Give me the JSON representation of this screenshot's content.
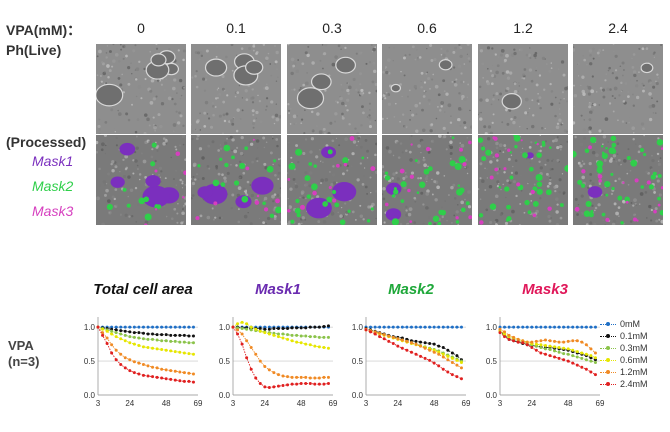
{
  "header": {
    "vpa_label": "VPA(mM)：",
    "ph_label": "Ph(Live)",
    "processed_label": "(Processed)",
    "concentrations": [
      "0",
      "0.1",
      "0.3",
      "0.6",
      "1.2",
      "2.4"
    ]
  },
  "masks": [
    {
      "name": "Mask1",
      "color": "#7b2fbe"
    },
    {
      "name": "Mask2",
      "color": "#2fcf4a"
    },
    {
      "name": "Mask3",
      "color": "#d63fbf"
    }
  ],
  "vpa_row_label": [
    "VPA",
    "(n=3)"
  ],
  "chart_data": [
    {
      "type": "line",
      "title": "Total cell area",
      "title_color": "#111111",
      "x_ticks": [
        "3",
        "24",
        "48",
        "69"
      ],
      "y_ticks": [
        "0.0",
        "0.5",
        "1.0"
      ],
      "xlim": [
        3,
        69
      ],
      "ylim": [
        0,
        1.15
      ],
      "x": [
        3,
        6,
        9,
        12,
        15,
        18,
        21,
        24,
        27,
        30,
        33,
        36,
        39,
        42,
        45,
        48,
        51,
        54,
        57,
        60,
        63,
        66
      ],
      "series": [
        {
          "name": "0mM",
          "color": "#1f6fc5",
          "values": [
            1.0,
            1.0,
            1.0,
            1.0,
            1.0,
            1.0,
            1.0,
            1.0,
            1.0,
            1.0,
            1.0,
            1.0,
            1.0,
            1.0,
            1.0,
            1.0,
            1.0,
            1.0,
            1.0,
            1.0,
            1.0,
            1.0
          ]
        },
        {
          "name": "0.1mM",
          "color": "#111111",
          "values": [
            1.0,
            0.99,
            0.98,
            0.97,
            0.96,
            0.95,
            0.94,
            0.93,
            0.92,
            0.92,
            0.91,
            0.9,
            0.9,
            0.89,
            0.89,
            0.89,
            0.88,
            0.88,
            0.88,
            0.88,
            0.87,
            0.87
          ]
        },
        {
          "name": "0.3mM",
          "color": "#8bc34a",
          "values": [
            1.0,
            0.98,
            0.96,
            0.94,
            0.92,
            0.9,
            0.88,
            0.86,
            0.85,
            0.84,
            0.83,
            0.82,
            0.82,
            0.81,
            0.8,
            0.8,
            0.79,
            0.79,
            0.78,
            0.78,
            0.77,
            0.77
          ]
        },
        {
          "name": "0.6mM",
          "color": "#e6e600",
          "values": [
            1.0,
            0.97,
            0.94,
            0.9,
            0.86,
            0.83,
            0.8,
            0.77,
            0.75,
            0.73,
            0.71,
            0.7,
            0.69,
            0.68,
            0.67,
            0.66,
            0.65,
            0.64,
            0.63,
            0.62,
            0.61,
            0.6
          ]
        },
        {
          "name": "1.2mM",
          "color": "#f08a24",
          "values": [
            1.0,
            0.92,
            0.84,
            0.74,
            0.66,
            0.6,
            0.55,
            0.52,
            0.49,
            0.47,
            0.45,
            0.43,
            0.41,
            0.4,
            0.38,
            0.37,
            0.36,
            0.35,
            0.34,
            0.33,
            0.32,
            0.31
          ]
        },
        {
          "name": "2.4mM",
          "color": "#e02020",
          "values": [
            1.0,
            0.88,
            0.76,
            0.62,
            0.52,
            0.45,
            0.4,
            0.36,
            0.33,
            0.31,
            0.29,
            0.28,
            0.27,
            0.26,
            0.25,
            0.24,
            0.23,
            0.22,
            0.21,
            0.2,
            0.2,
            0.19
          ]
        }
      ]
    },
    {
      "type": "line",
      "title": "Mask1",
      "title_color": "#6a2bb0",
      "x_ticks": [
        "3",
        "24",
        "48",
        "69"
      ],
      "y_ticks": [
        "0.0",
        "0.5",
        "1.0"
      ],
      "xlim": [
        3,
        69
      ],
      "ylim": [
        0,
        1.15
      ],
      "x": [
        3,
        6,
        9,
        12,
        15,
        18,
        21,
        24,
        27,
        30,
        33,
        36,
        39,
        42,
        45,
        48,
        51,
        54,
        57,
        60,
        63,
        66
      ],
      "series": [
        {
          "name": "0mM",
          "color": "#1f6fc5",
          "values": [
            1.0,
            1.0,
            1.0,
            1.0,
            1.0,
            1.0,
            1.0,
            1.0,
            1.0,
            1.0,
            1.0,
            1.0,
            1.0,
            1.0,
            1.0,
            1.0,
            1.0,
            1.0,
            1.0,
            1.0,
            1.0,
            1.0
          ]
        },
        {
          "name": "0.1mM",
          "color": "#111111",
          "values": [
            1.0,
            1.0,
            0.99,
            0.99,
            0.98,
            0.98,
            0.98,
            0.97,
            0.97,
            0.98,
            0.98,
            0.98,
            0.98,
            0.99,
            0.99,
            0.99,
            0.99,
            1.0,
            1.0,
            1.0,
            1.01,
            1.02
          ]
        },
        {
          "name": "0.3mM",
          "color": "#8bc34a",
          "values": [
            1.0,
            0.99,
            0.98,
            0.97,
            0.96,
            0.95,
            0.94,
            0.93,
            0.92,
            0.91,
            0.9,
            0.9,
            0.89,
            0.88,
            0.88,
            0.87,
            0.87,
            0.86,
            0.86,
            0.85,
            0.85,
            0.85
          ]
        },
        {
          "name": "0.6mM",
          "color": "#e6e600",
          "values": [
            1.0,
            1.05,
            1.07,
            1.05,
            1.0,
            0.97,
            0.94,
            0.92,
            0.9,
            0.88,
            0.86,
            0.84,
            0.82,
            0.8,
            0.78,
            0.77,
            0.75,
            0.74,
            0.72,
            0.71,
            0.7,
            0.69
          ]
        },
        {
          "name": "1.2mM",
          "color": "#f08a24",
          "values": [
            1.0,
            0.96,
            0.9,
            0.8,
            0.7,
            0.6,
            0.5,
            0.42,
            0.37,
            0.33,
            0.3,
            0.28,
            0.27,
            0.26,
            0.26,
            0.26,
            0.26,
            0.25,
            0.25,
            0.25,
            0.26,
            0.26
          ]
        },
        {
          "name": "2.4mM",
          "color": "#e02020",
          "values": [
            1.0,
            0.9,
            0.75,
            0.55,
            0.38,
            0.25,
            0.17,
            0.12,
            0.11,
            0.12,
            0.13,
            0.14,
            0.15,
            0.16,
            0.16,
            0.17,
            0.17,
            0.17,
            0.16,
            0.16,
            0.16,
            0.17
          ]
        }
      ]
    },
    {
      "type": "line",
      "title": "Mask2",
      "title_color": "#1fa83a",
      "x_ticks": [
        "3",
        "24",
        "48",
        "69"
      ],
      "y_ticks": [
        "0.0",
        "0.5",
        "1.0"
      ],
      "xlim": [
        3,
        69
      ],
      "ylim": [
        0,
        1.15
      ],
      "x": [
        3,
        6,
        9,
        12,
        15,
        18,
        21,
        24,
        27,
        30,
        33,
        36,
        39,
        42,
        45,
        48,
        51,
        54,
        57,
        60,
        63,
        66
      ],
      "series": [
        {
          "name": "0mM",
          "color": "#1f6fc5",
          "values": [
            1.0,
            1.0,
            1.0,
            1.0,
            1.0,
            1.0,
            1.0,
            1.0,
            1.0,
            1.0,
            1.0,
            1.0,
            1.0,
            1.0,
            1.0,
            1.0,
            1.0,
            1.0,
            1.0,
            1.0,
            1.0,
            1.0
          ]
        },
        {
          "name": "0.1mM",
          "color": "#111111",
          "values": [
            0.98,
            0.96,
            0.94,
            0.92,
            0.9,
            0.88,
            0.86,
            0.85,
            0.84,
            0.82,
            0.8,
            0.79,
            0.78,
            0.77,
            0.76,
            0.75,
            0.72,
            0.7,
            0.66,
            0.62,
            0.58,
            0.52
          ]
        },
        {
          "name": "0.3mM",
          "color": "#8bc34a",
          "values": [
            0.97,
            0.95,
            0.93,
            0.91,
            0.89,
            0.87,
            0.85,
            0.83,
            0.81,
            0.79,
            0.77,
            0.75,
            0.73,
            0.71,
            0.69,
            0.67,
            0.65,
            0.62,
            0.59,
            0.56,
            0.53,
            0.5
          ]
        },
        {
          "name": "0.6mM",
          "color": "#e6e600",
          "values": [
            0.96,
            0.94,
            0.92,
            0.9,
            0.88,
            0.86,
            0.84,
            0.82,
            0.8,
            0.78,
            0.76,
            0.74,
            0.72,
            0.7,
            0.68,
            0.66,
            0.63,
            0.6,
            0.57,
            0.54,
            0.51,
            0.48
          ]
        },
        {
          "name": "1.2mM",
          "color": "#f08a24",
          "values": [
            0.97,
            0.95,
            0.93,
            0.91,
            0.89,
            0.87,
            0.85,
            0.83,
            0.81,
            0.79,
            0.77,
            0.75,
            0.72,
            0.69,
            0.66,
            0.63,
            0.6,
            0.56,
            0.52,
            0.48,
            0.44,
            0.4
          ]
        },
        {
          "name": "2.4mM",
          "color": "#e02020",
          "values": [
            0.96,
            0.93,
            0.9,
            0.86,
            0.83,
            0.79,
            0.76,
            0.72,
            0.69,
            0.66,
            0.63,
            0.6,
            0.57,
            0.54,
            0.51,
            0.47,
            0.43,
            0.38,
            0.34,
            0.3,
            0.27,
            0.24
          ]
        }
      ]
    },
    {
      "type": "line",
      "title": "Mask3",
      "title_color": "#e0185a",
      "x_ticks": [
        "3",
        "24",
        "48",
        "69"
      ],
      "y_ticks": [
        "0.0",
        "0.5",
        "1.0"
      ],
      "xlim": [
        3,
        69
      ],
      "ylim": [
        0,
        1.15
      ],
      "x": [
        3,
        6,
        9,
        12,
        15,
        18,
        21,
        24,
        27,
        30,
        33,
        36,
        39,
        42,
        45,
        48,
        51,
        54,
        57,
        60,
        63,
        66
      ],
      "series": [
        {
          "name": "0mM",
          "color": "#1f6fc5",
          "values": [
            1.0,
            1.0,
            1.0,
            1.0,
            1.0,
            1.0,
            1.0,
            1.0,
            1.0,
            1.0,
            1.0,
            1.0,
            1.0,
            1.0,
            1.0,
            1.0,
            1.0,
            1.0,
            1.0,
            1.0,
            1.0,
            1.0
          ]
        },
        {
          "name": "0.1mM",
          "color": "#111111",
          "values": [
            0.95,
            0.88,
            0.82,
            0.8,
            0.78,
            0.76,
            0.74,
            0.73,
            0.72,
            0.71,
            0.7,
            0.7,
            0.69,
            0.68,
            0.67,
            0.66,
            0.64,
            0.62,
            0.6,
            0.58,
            0.55,
            0.52
          ]
        },
        {
          "name": "0.3mM",
          "color": "#8bc34a",
          "values": [
            0.93,
            0.88,
            0.84,
            0.82,
            0.8,
            0.78,
            0.76,
            0.74,
            0.72,
            0.7,
            0.68,
            0.67,
            0.65,
            0.63,
            0.61,
            0.6,
            0.58,
            0.56,
            0.54,
            0.52,
            0.5,
            0.48
          ]
        },
        {
          "name": "0.6mM",
          "color": "#e6e600",
          "values": [
            0.95,
            0.9,
            0.86,
            0.84,
            0.82,
            0.8,
            0.78,
            0.76,
            0.75,
            0.74,
            0.73,
            0.72,
            0.71,
            0.7,
            0.69,
            0.68,
            0.66,
            0.64,
            0.62,
            0.6,
            0.58,
            0.55
          ]
        },
        {
          "name": "1.2mM",
          "color": "#f08a24",
          "values": [
            0.97,
            0.93,
            0.88,
            0.85,
            0.82,
            0.8,
            0.78,
            0.78,
            0.79,
            0.8,
            0.81,
            0.8,
            0.79,
            0.78,
            0.78,
            0.79,
            0.8,
            0.8,
            0.78,
            0.74,
            0.68,
            0.62
          ]
        },
        {
          "name": "2.4mM",
          "color": "#e02020",
          "values": [
            0.92,
            0.86,
            0.82,
            0.8,
            0.78,
            0.77,
            0.74,
            0.7,
            0.66,
            0.62,
            0.6,
            0.58,
            0.56,
            0.54,
            0.52,
            0.5,
            0.47,
            0.44,
            0.41,
            0.38,
            0.34,
            0.3
          ]
        }
      ]
    }
  ]
}
